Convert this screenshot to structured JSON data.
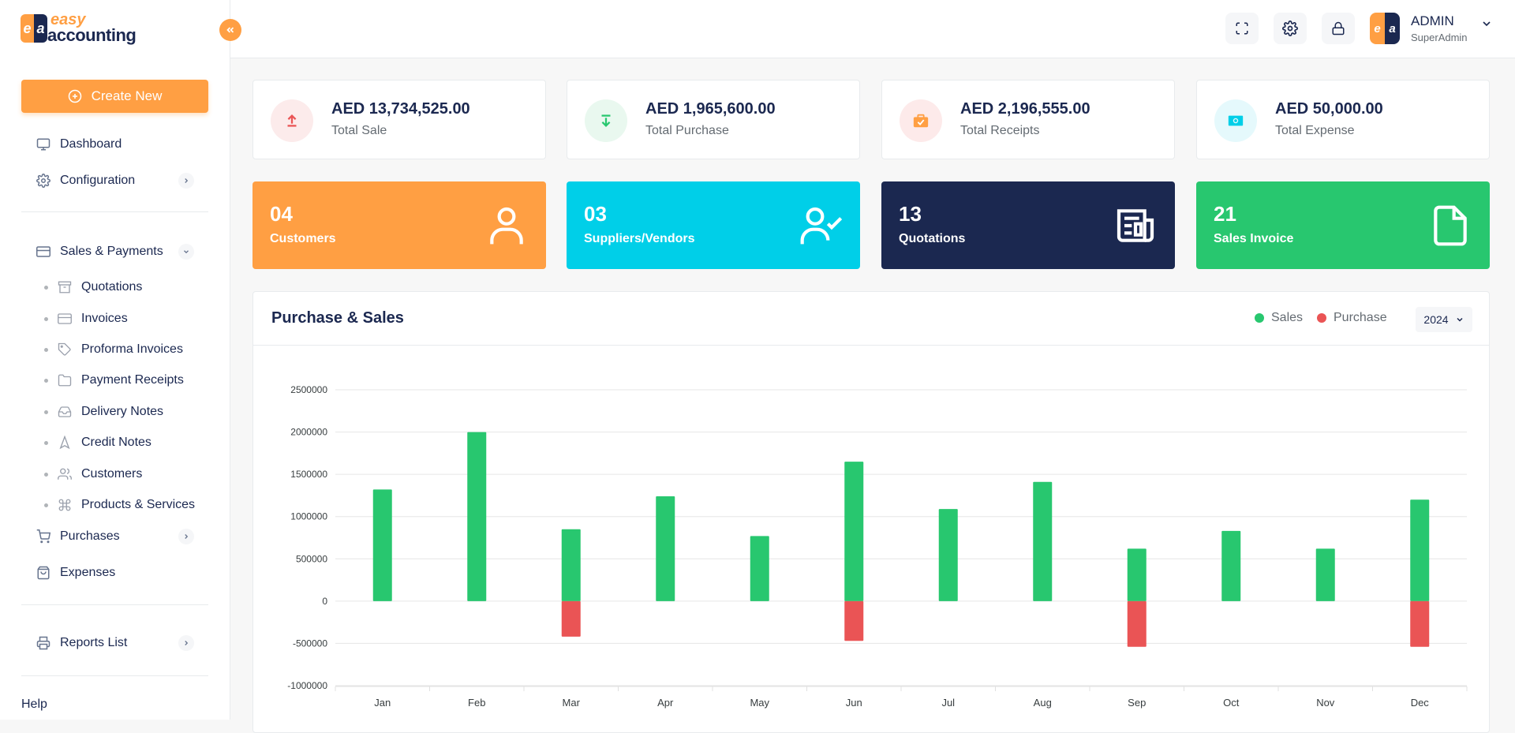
{
  "brand": {
    "mark_left": "e",
    "mark_right": "a",
    "line1": "easy",
    "line2": "accounting"
  },
  "sidebar": {
    "create_label": "Create New",
    "items": [
      {
        "label": "Dashboard",
        "icon": "monitor-icon"
      },
      {
        "label": "Configuration",
        "icon": "gear-icon"
      },
      {
        "label": "Sales & Payments",
        "icon": "credit-card-icon"
      },
      {
        "label": "Purchases",
        "icon": "cart-icon"
      },
      {
        "label": "Expenses",
        "icon": "bag-icon"
      },
      {
        "label": "Reports List",
        "icon": "printer-icon"
      }
    ],
    "sub_items": [
      {
        "label": "Quotations",
        "icon": "archive-icon"
      },
      {
        "label": "Invoices",
        "icon": "card-icon"
      },
      {
        "label": "Proforma Invoices",
        "icon": "tag-icon"
      },
      {
        "label": "Payment Receipts",
        "icon": "folder-icon"
      },
      {
        "label": "Delivery Notes",
        "icon": "inbox-icon"
      },
      {
        "label": "Credit Notes",
        "icon": "navigation-icon"
      },
      {
        "label": "Customers",
        "icon": "users-icon"
      },
      {
        "label": "Products & Services",
        "icon": "command-icon"
      }
    ],
    "help_label": "Help"
  },
  "user": {
    "name": "ADMIN",
    "role": "SuperAdmin"
  },
  "stats": [
    {
      "value": "AED 13,734,525.00",
      "label": "Total Sale",
      "color": "#ea5455",
      "bg": "#fcebeb"
    },
    {
      "value": "AED 1,965,600.00",
      "label": "Total Purchase",
      "color": "#28c76f",
      "bg": "#e9f8ef"
    },
    {
      "value": "AED 2,196,555.00",
      "label": "Total Receipts",
      "color": "#ff9f43",
      "bg": "#fdeaea"
    },
    {
      "value": "AED 50,000.00",
      "label": "Total Expense",
      "color": "#00cfe8",
      "bg": "#e5f9fc"
    }
  ],
  "counts": [
    {
      "value": "04",
      "label": "Customers",
      "bg": "#ff9f43"
    },
    {
      "value": "03",
      "label": "Suppliers/Vendors",
      "bg": "#00cfe8"
    },
    {
      "value": "13",
      "label": "Quotations",
      "bg": "#1b2850"
    },
    {
      "value": "21",
      "label": "Sales Invoice",
      "bg": "#28c76f"
    }
  ],
  "chart_section": {
    "title": "Purchase & Sales",
    "year": "2024"
  },
  "chart_data": {
    "type": "bar",
    "categories": [
      "Jan",
      "Feb",
      "Mar",
      "Apr",
      "May",
      "Jun",
      "Jul",
      "Aug",
      "Sep",
      "Oct",
      "Nov",
      "Dec"
    ],
    "series": [
      {
        "name": "Sales",
        "color": "#28c76f",
        "values": [
          1320000,
          2000000,
          850000,
          1240000,
          770000,
          1650000,
          1090000,
          1410000,
          620000,
          830000,
          620000,
          1200000
        ]
      },
      {
        "name": "Purchase",
        "color": "#ea5455",
        "values": [
          0,
          0,
          -420000,
          0,
          0,
          -470000,
          0,
          0,
          -540000,
          0,
          0,
          -540000
        ]
      }
    ],
    "ylim": [
      -1000000,
      2500000
    ],
    "yticks": [
      "2500000",
      "2000000",
      "1500000",
      "1000000",
      "500000",
      "0",
      "-500000",
      "-1000000"
    ],
    "grid": true,
    "legend_position": "top-right"
  }
}
